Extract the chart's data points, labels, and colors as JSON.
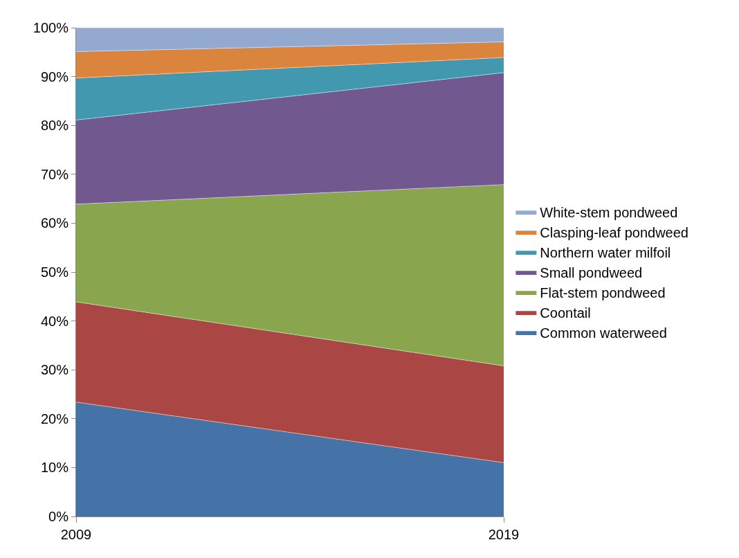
{
  "chart_data": {
    "type": "area",
    "stacked": true,
    "x": [
      2009,
      2019
    ],
    "xlim": [
      2009,
      2019
    ],
    "xticks": [
      2009,
      2019
    ],
    "ylim": [
      0,
      100
    ],
    "yticks": [
      {
        "value": 0,
        "label": "0%"
      },
      {
        "value": 10,
        "label": "10%"
      },
      {
        "value": 20,
        "label": "20%"
      },
      {
        "value": 30,
        "label": "30%"
      },
      {
        "value": 40,
        "label": "40%"
      },
      {
        "value": 50,
        "label": "50%"
      },
      {
        "value": 60,
        "label": "60%"
      },
      {
        "value": 70,
        "label": "70%"
      },
      {
        "value": 80,
        "label": "80%"
      },
      {
        "value": 90,
        "label": "90%"
      },
      {
        "value": 100,
        "label": "100%"
      }
    ],
    "legend": "right",
    "series": [
      {
        "name": "Common waterweed",
        "color": "#4572a7",
        "values": [
          23.4,
          11
        ]
      },
      {
        "name": "Coontail",
        "color": "#aa4643",
        "values": [
          20.5,
          19.8
        ]
      },
      {
        "name": "Flat-stem pondweed",
        "color": "#89a54e",
        "values": [
          20.0,
          37.1
        ]
      },
      {
        "name": "Small pondweed",
        "color": "#71588f",
        "values": [
          17.2,
          22.9
        ]
      },
      {
        "name": "Northern water milfoil",
        "color": "#4198af",
        "values": [
          8.6,
          3.1
        ]
      },
      {
        "name": "Clasping-leaf pondweed",
        "color": "#db843d",
        "values": [
          5.4,
          3.2
        ]
      },
      {
        "name": "White-stem pondweed",
        "color": "#93a9cf",
        "values": [
          4.9,
          2.9
        ]
      }
    ]
  }
}
